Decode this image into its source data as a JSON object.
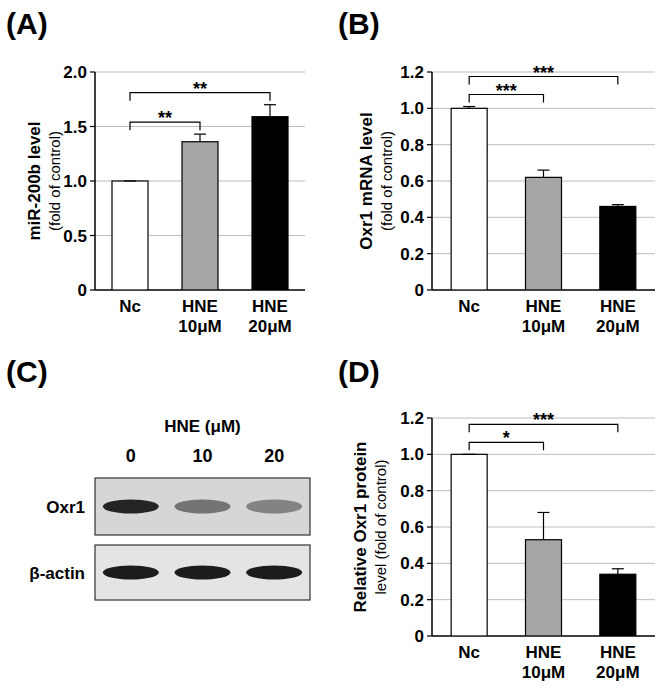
{
  "chart_data": [
    {
      "type": "bar",
      "title": "(A)",
      "ylabel": [
        "miR-200b level",
        "(fold of control)"
      ],
      "categories": [
        "Nc",
        "HNE 10μM",
        "HNE 20μM"
      ],
      "values": [
        1.0,
        1.36,
        1.59
      ],
      "errors": [
        0,
        0.07,
        0.11
      ],
      "colors": [
        "#ffffff",
        "#a6a6a6",
        "#000000"
      ],
      "ylim": [
        0,
        2
      ],
      "yticks": [
        0,
        0.5,
        {
          "value": 1,
          "label": "1.0"
        },
        1.5,
        {
          "value": 2,
          "label": "2.0"
        }
      ],
      "grid": true,
      "annotations": [
        {
          "text": "**",
          "pair": [
            0,
            1
          ]
        },
        {
          "text": "**",
          "pair": [
            0,
            2
          ]
        }
      ]
    },
    {
      "type": "bar",
      "title": "(B)",
      "ylabel": [
        "Oxr1 mRNA level",
        "(fold of control)"
      ],
      "categories": [
        "Nc",
        "HNE 10μM",
        "HNE 20μM"
      ],
      "values": [
        1.0,
        0.62,
        0.46
      ],
      "errors": [
        0.01,
        0.04,
        0.01
      ],
      "colors": [
        "#ffffff",
        "#a6a6a6",
        "#000000"
      ],
      "ylim": [
        0,
        1.2
      ],
      "yticks": [
        0,
        0.2,
        0.4,
        0.6,
        0.8,
        {
          "value": 1,
          "label": "1.0"
        },
        1.2
      ],
      "grid": true,
      "annotations": [
        {
          "text": "***",
          "pair": [
            0,
            1
          ]
        },
        {
          "text": "***",
          "pair": [
            0,
            2
          ]
        }
      ]
    },
    {
      "type": "blot",
      "title": "(C)",
      "header": "HNE (μM)",
      "lanes": [
        0,
        10,
        20
      ],
      "rows": [
        {
          "name": "Oxr1",
          "intensity": [
            0.9,
            0.5,
            0.42
          ]
        },
        {
          "name": "β-actin",
          "intensity": [
            0.95,
            0.95,
            0.95
          ]
        }
      ]
    },
    {
      "type": "bar",
      "title": "(D)",
      "ylabel": [
        "Relative Oxr1 protein",
        "level (fold of control)"
      ],
      "categories": [
        "Nc",
        "HNE 10μM",
        "HNE 20μM"
      ],
      "values": [
        1.0,
        0.53,
        0.34
      ],
      "errors": [
        0,
        0.15,
        0.03
      ],
      "colors": [
        "#ffffff",
        "#a6a6a6",
        "#000000"
      ],
      "ylim": [
        0,
        1.2
      ],
      "yticks": [
        0,
        0.2,
        0.4,
        0.6,
        0.8,
        {
          "value": 1,
          "label": "1.0"
        },
        1.2
      ],
      "grid": true,
      "annotations": [
        {
          "text": "*",
          "pair": [
            0,
            1
          ]
        },
        {
          "text": "***",
          "pair": [
            0,
            2
          ]
        }
      ]
    }
  ]
}
